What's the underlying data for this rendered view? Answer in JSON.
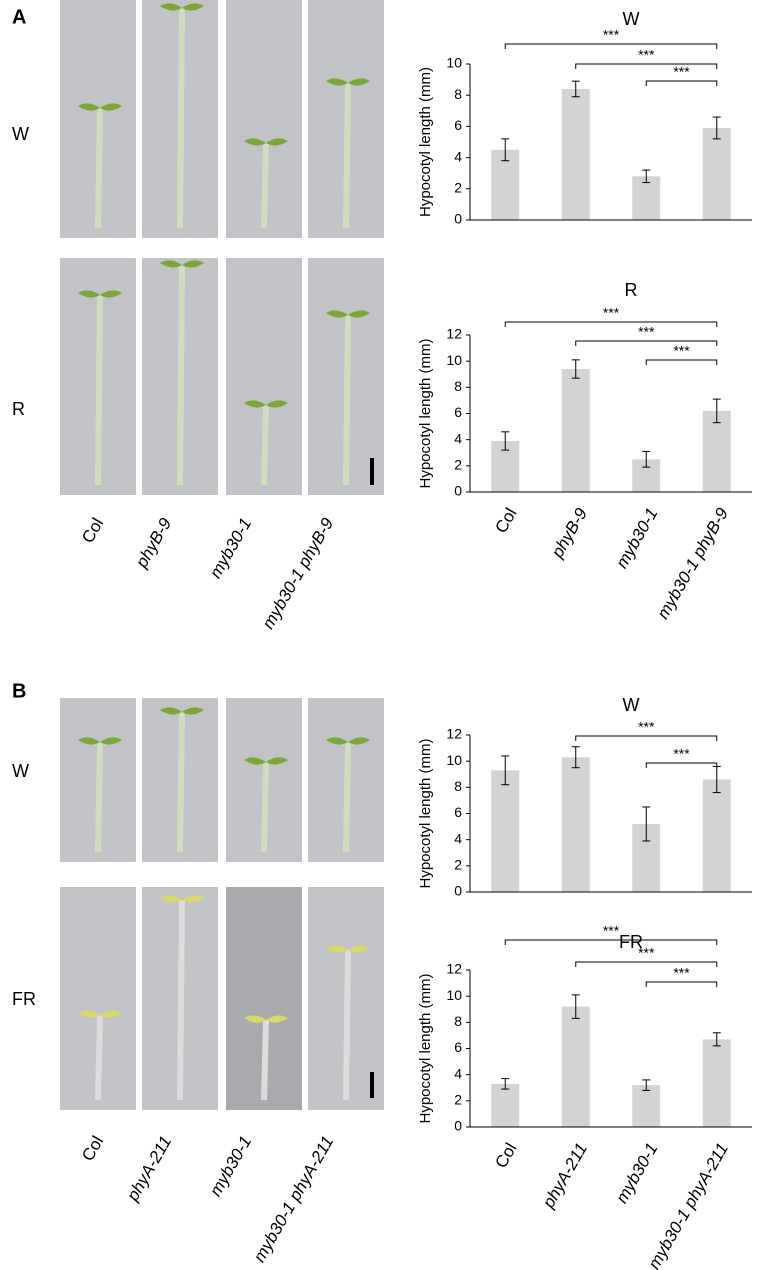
{
  "panels": [
    {
      "letter": "A",
      "rows": [
        "W",
        "R"
      ],
      "genotypes": [
        "Col",
        "phyB-9",
        "myb30-1",
        "myb30-1 phyB-9"
      ]
    },
    {
      "letter": "B",
      "rows": [
        "W",
        "FR"
      ],
      "genotypes": [
        "Col",
        "phyA-211",
        "myb30-1",
        "myb30-1 phyA-211"
      ]
    }
  ],
  "chart_data": [
    {
      "type": "bar",
      "title": "W",
      "y_label": "Hypocotyl length (mm)",
      "color": "#d3d3d3",
      "categories": [
        null,
        null,
        null,
        null
      ],
      "values": [
        4.5,
        8.4,
        2.8,
        5.9
      ],
      "errors": [
        0.7,
        0.5,
        0.4,
        0.7
      ],
      "ylim": [
        0,
        10
      ],
      "yticks": [
        0,
        2,
        4,
        6,
        8,
        10
      ],
      "significance": [
        {
          "from": 0,
          "to": 3,
          "label": "***"
        },
        {
          "from": 1,
          "to": 3,
          "label": "***"
        },
        {
          "from": 2,
          "to": 3,
          "label": "***"
        }
      ]
    },
    {
      "type": "bar",
      "title": "R",
      "y_label": "Hypocotyl length (mm)",
      "color": "#d3d3d3",
      "categories": [
        "Col",
        "phyB-9",
        "myb30-1",
        "myb30-1 phyB-9"
      ],
      "values": [
        3.9,
        9.4,
        2.5,
        6.2
      ],
      "errors": [
        0.7,
        0.7,
        0.6,
        0.9
      ],
      "ylim": [
        0,
        12
      ],
      "yticks": [
        0,
        2,
        4,
        6,
        8,
        10,
        12
      ],
      "significance": [
        {
          "from": 0,
          "to": 3,
          "label": "***"
        },
        {
          "from": 1,
          "to": 3,
          "label": "***"
        },
        {
          "from": 2,
          "to": 3,
          "label": "***"
        }
      ]
    },
    {
      "type": "bar",
      "title": "W",
      "y_label": "Hypocotyl length (mm)",
      "color": "#d3d3d3",
      "categories": [
        null,
        null,
        null,
        null
      ],
      "values": [
        9.3,
        10.3,
        5.2,
        8.6
      ],
      "errors": [
        1.1,
        0.8,
        1.3,
        1.0
      ],
      "ylim": [
        0,
        12
      ],
      "yticks": [
        0,
        2,
        4,
        6,
        8,
        10,
        12
      ],
      "significance": [
        {
          "from": 1,
          "to": 3,
          "label": "***"
        },
        {
          "from": 2,
          "to": 3,
          "label": "***"
        }
      ]
    },
    {
      "type": "bar",
      "title": "FR",
      "y_label": "Hypocotyl length (mm)",
      "color": "#d3d3d3",
      "categories": [
        "Col",
        "phyA-211",
        "myb30-1",
        "myb30-1 phyA-211"
      ],
      "values": [
        3.3,
        9.2,
        3.2,
        6.7
      ],
      "errors": [
        0.4,
        0.9,
        0.4,
        0.5
      ],
      "ylim": [
        0,
        12
      ],
      "yticks": [
        0,
        2,
        4,
        6,
        8,
        10,
        12
      ],
      "significance": [
        {
          "from": 0,
          "to": 3,
          "label": "***"
        },
        {
          "from": 1,
          "to": 3,
          "label": "***"
        },
        {
          "from": 2,
          "to": 3,
          "label": "***"
        }
      ]
    }
  ]
}
